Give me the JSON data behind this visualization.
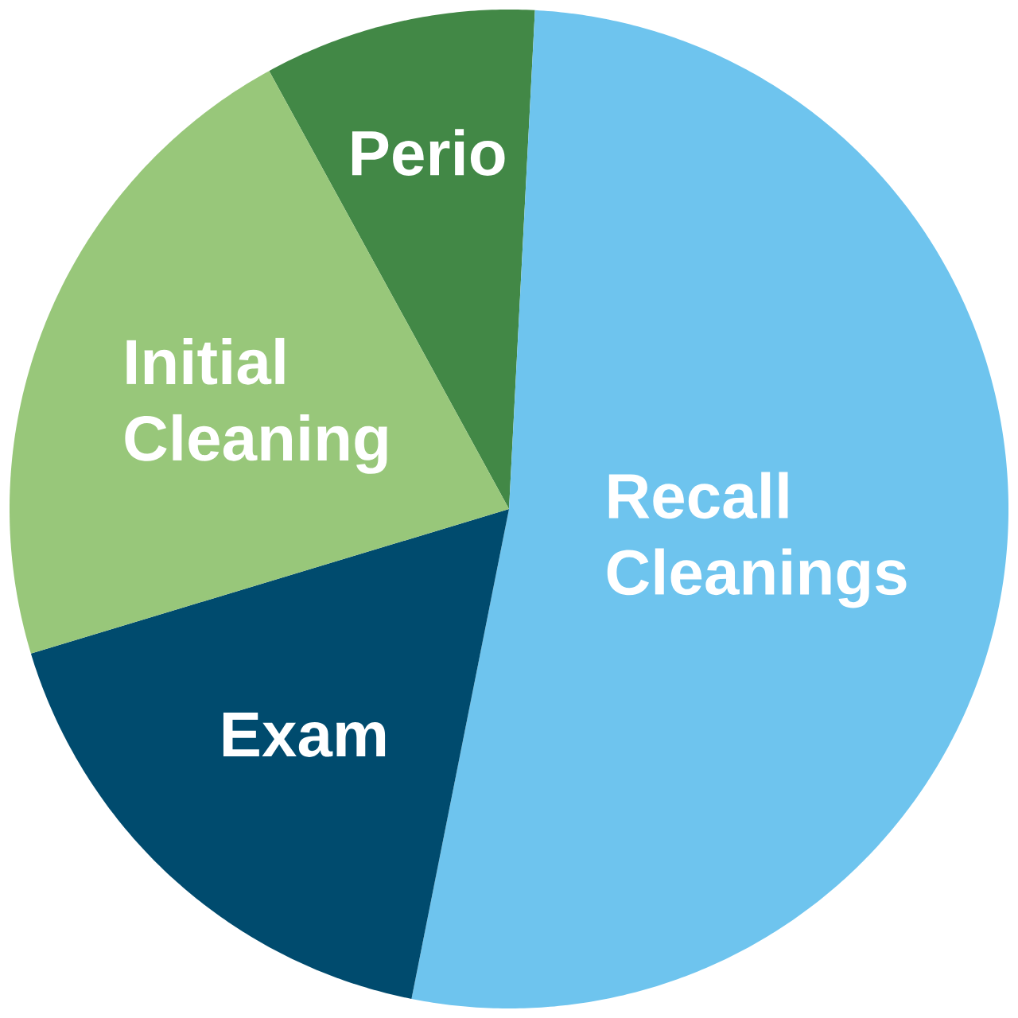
{
  "chart_data": {
    "type": "pie",
    "categories": [
      "Perio",
      "Recall Cleanings",
      "Exam",
      "Initial Cleaning"
    ],
    "values": [
      8.8,
      52.3,
      17.2,
      21.7
    ],
    "colors": [
      "#428846",
      "#6ec4ee",
      "#004b6e",
      "#98c77a"
    ]
  }
}
